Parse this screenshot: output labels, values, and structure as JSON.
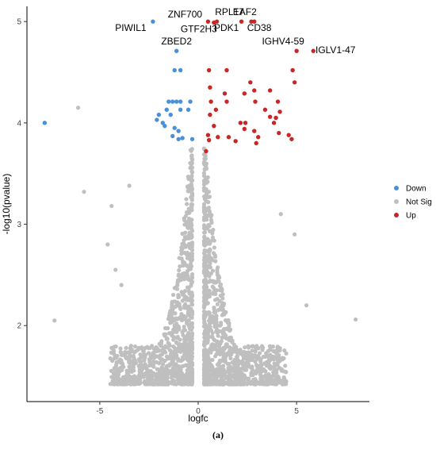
{
  "caption": "(a)",
  "chart_data": {
    "type": "scatter",
    "xlabel": "logfc",
    "ylabel": "-log10(pvalue)",
    "xlim": [
      -8.7,
      8.7
    ],
    "ylim": [
      1.25,
      5.15
    ],
    "x_ticks": [
      -5,
      0,
      5
    ],
    "x_tick_labels": [
      "-5",
      "0",
      "5"
    ],
    "y_ticks": [
      2,
      3,
      4,
      5
    ],
    "y_tick_labels": [
      "2",
      "3",
      "4",
      "5"
    ],
    "grid": false,
    "legend_position": "right",
    "series": [
      {
        "name": "Down",
        "color": "#4a90d9",
        "points": [
          [
            -2.3,
            5.0
          ],
          [
            -1.1,
            4.71
          ],
          [
            -1.2,
            4.52
          ],
          [
            -0.9,
            4.52
          ],
          [
            -1.5,
            4.21
          ],
          [
            -1.3,
            4.21
          ],
          [
            -1.1,
            4.21
          ],
          [
            -0.9,
            4.21
          ],
          [
            -0.4,
            4.21
          ],
          [
            -1.6,
            4.13
          ],
          [
            -0.9,
            4.13
          ],
          [
            -0.5,
            4.13
          ],
          [
            -2.0,
            4.08
          ],
          [
            -1.4,
            4.08
          ],
          [
            -2.1,
            4.03
          ],
          [
            -1.8,
            4.0
          ],
          [
            -1.7,
            3.97
          ],
          [
            -1.2,
            3.95
          ],
          [
            -1.0,
            3.92
          ],
          [
            -1.3,
            3.87
          ],
          [
            -0.8,
            3.85
          ],
          [
            -1.0,
            3.84
          ],
          [
            -0.3,
            3.84
          ],
          [
            -7.8,
            4.0
          ]
        ]
      },
      {
        "name": "Not Sig",
        "color": "#bfbfbf",
        "points": []
      },
      {
        "name": "Up",
        "color": "#c62828",
        "points": [
          [
            0.5,
            5.0
          ],
          [
            0.8,
            4.99
          ],
          [
            0.95,
            5.0
          ],
          [
            2.2,
            5.0
          ],
          [
            2.7,
            5.0
          ],
          [
            2.85,
            5.0
          ],
          [
            5.0,
            4.71
          ],
          [
            5.85,
            4.71
          ],
          [
            0.55,
            4.52
          ],
          [
            1.45,
            4.52
          ],
          [
            4.8,
            4.52
          ],
          [
            2.65,
            4.4
          ],
          [
            4.9,
            4.4
          ],
          [
            0.6,
            4.35
          ],
          [
            2.85,
            4.32
          ],
          [
            3.65,
            4.32
          ],
          [
            1.35,
            4.29
          ],
          [
            2.35,
            4.29
          ],
          [
            0.65,
            4.21
          ],
          [
            1.45,
            4.21
          ],
          [
            2.9,
            4.21
          ],
          [
            4.05,
            4.21
          ],
          [
            0.9,
            4.13
          ],
          [
            3.4,
            4.13
          ],
          [
            4.15,
            4.11
          ],
          [
            0.6,
            4.08
          ],
          [
            3.65,
            4.06
          ],
          [
            3.95,
            4.05
          ],
          [
            2.15,
            4.0
          ],
          [
            2.4,
            4.0
          ],
          [
            3.85,
            4.0
          ],
          [
            0.8,
            3.97
          ],
          [
            2.35,
            3.94
          ],
          [
            2.85,
            3.92
          ],
          [
            4.1,
            3.9
          ],
          [
            0.5,
            3.88
          ],
          [
            4.6,
            3.88
          ],
          [
            1.0,
            3.86
          ],
          [
            1.55,
            3.86
          ],
          [
            3.05,
            3.86
          ],
          [
            4.75,
            3.84
          ],
          [
            0.55,
            3.83
          ],
          [
            1.9,
            3.82
          ],
          [
            2.95,
            3.8
          ],
          [
            0.4,
            3.72
          ]
        ]
      }
    ],
    "annotations": [
      {
        "text": "PIWIL1",
        "x": -2.3,
        "y": 5.0
      },
      {
        "text": "ZBED2",
        "x": -1.1,
        "y": 4.71
      },
      {
        "text": "ZNF700",
        "x": 0.5,
        "y": 5.0
      },
      {
        "text": "RPL17",
        "x": 0.95,
        "y": 5.0
      },
      {
        "text": "GTF2H3",
        "x": 0.8,
        "y": 4.99
      },
      {
        "text": "PDK1",
        "x": 2.2,
        "y": 5.0
      },
      {
        "text": "EAF2",
        "x": 2.85,
        "y": 5.0
      },
      {
        "text": "CD38",
        "x": 2.7,
        "y": 5.0
      },
      {
        "text": "IGHV4-59",
        "x": 5.0,
        "y": 4.71
      },
      {
        "text": "IGLV1-47",
        "x": 5.85,
        "y": 4.71
      }
    ]
  }
}
